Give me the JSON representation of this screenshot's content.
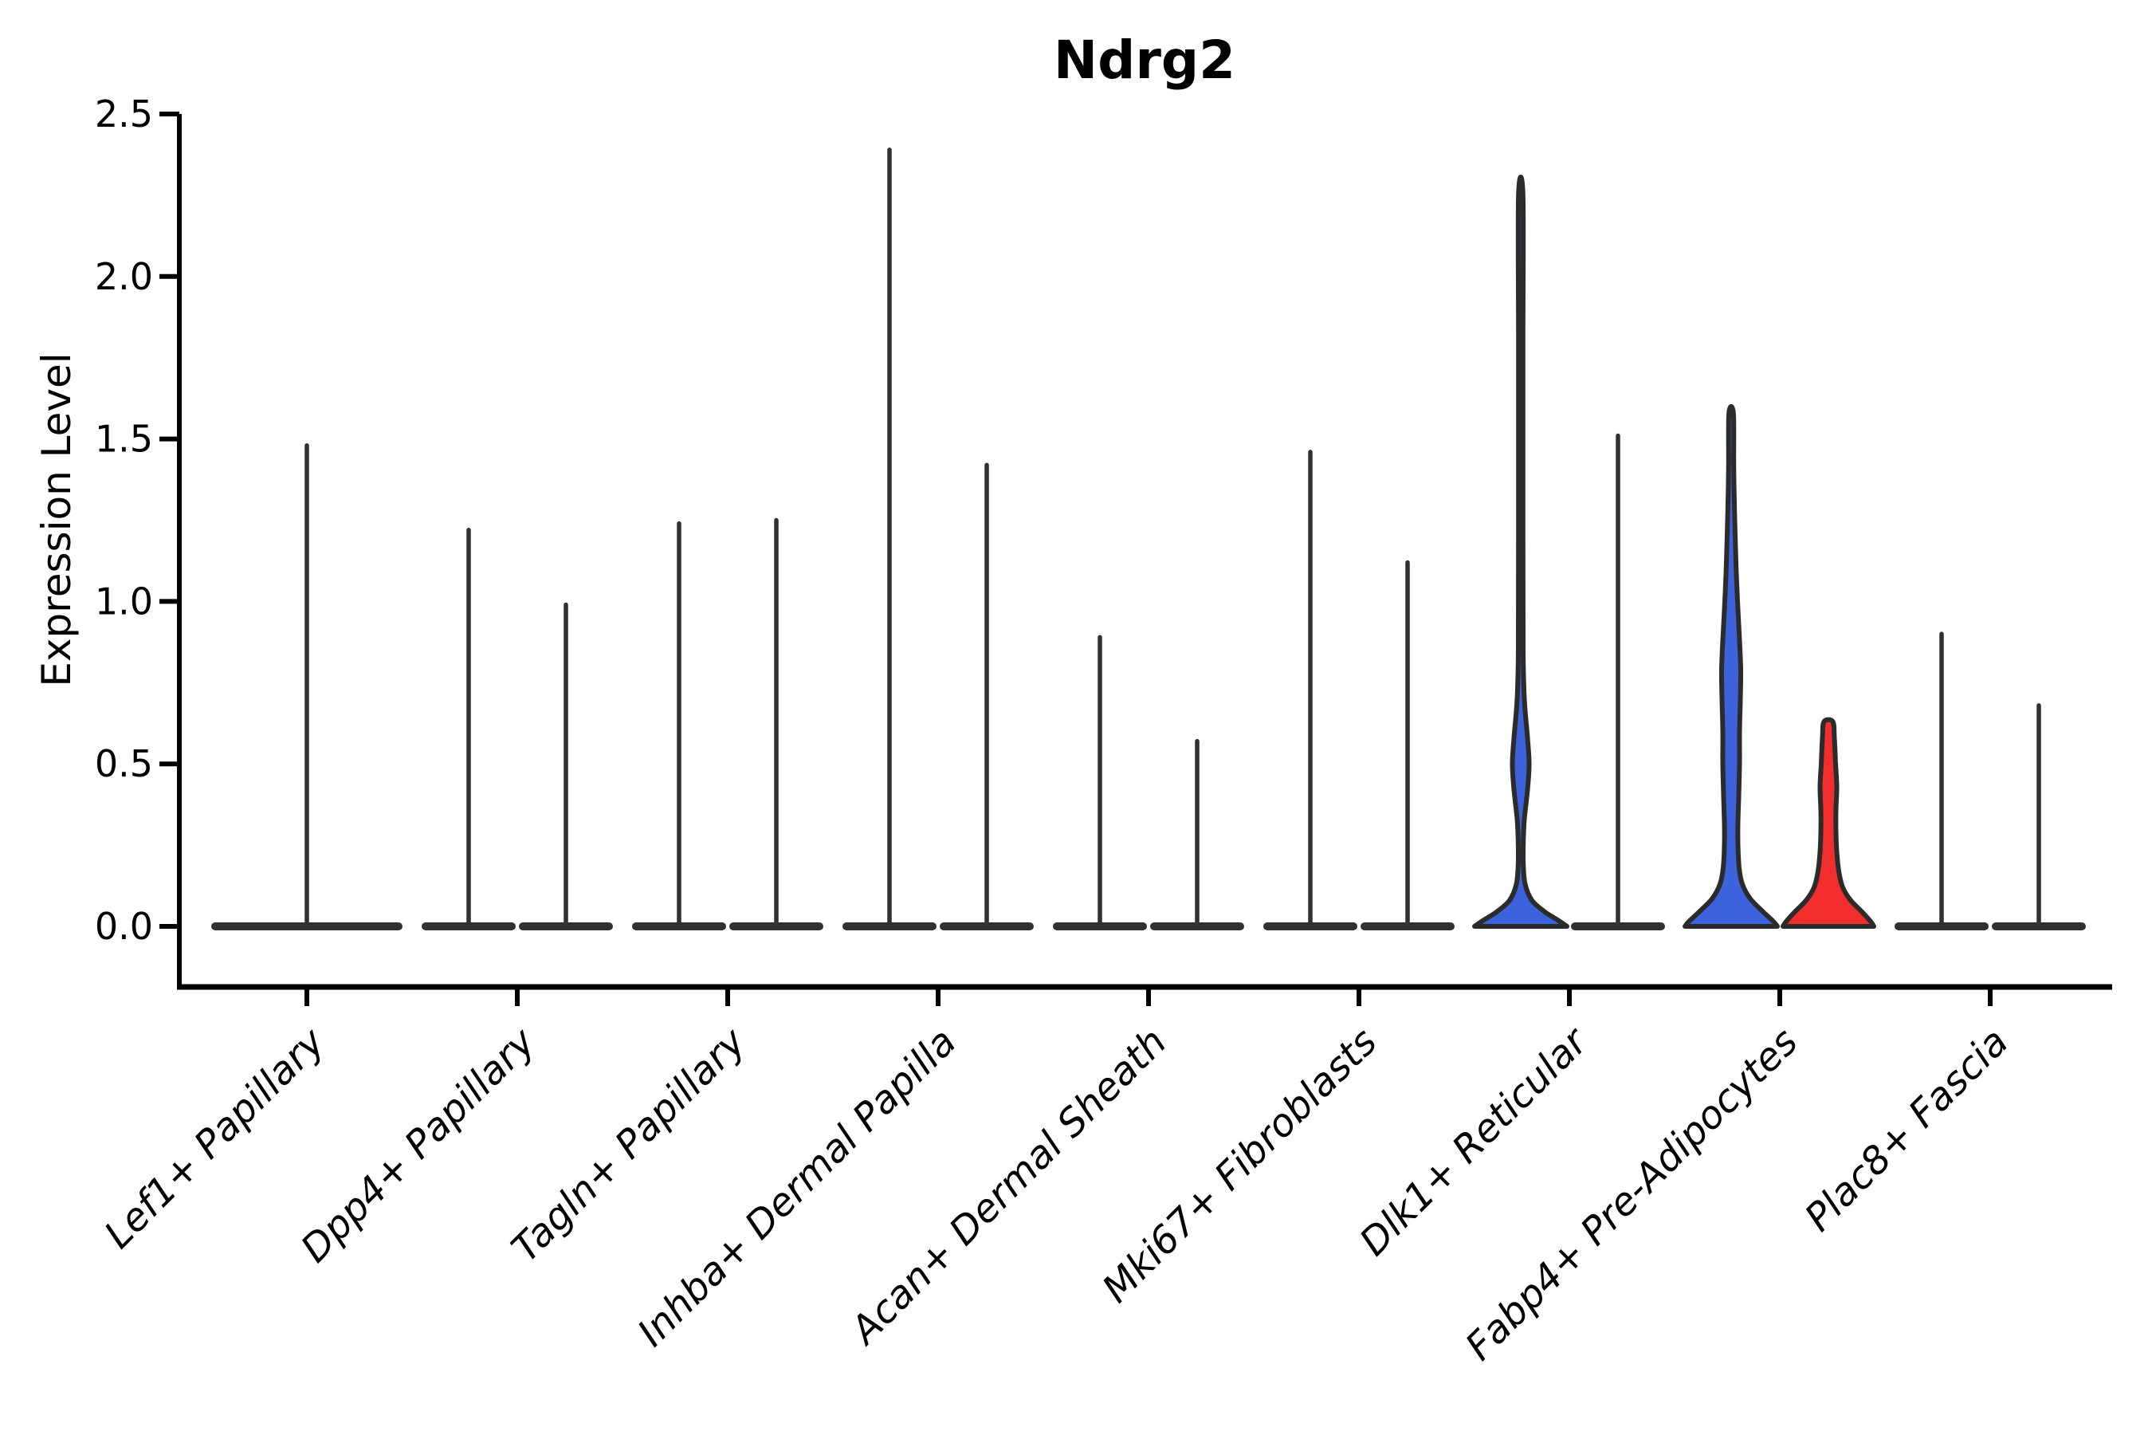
{
  "figure": {
    "title": "Ndrg2",
    "background_color": "#ffffff"
  },
  "chart_data": {
    "type": "violin",
    "title": "Ndrg2",
    "ylabel": "Expression Level",
    "xlabel": "",
    "grid": false,
    "legend_position": "none",
    "x_tick_rotation_deg": 45,
    "x_tick_style": "italic",
    "ylim": [
      -0.19,
      2.5
    ],
    "yticks": [
      "0.0",
      "0.5",
      "1.0",
      "1.5",
      "2.0",
      "2.5"
    ],
    "categories": [
      "Lef1+ Papillary",
      "Dpp4+ Papillary",
      "Tagln+ Papillary",
      "Inhba+ Dermal Papilla",
      "Acan+ Dermal Sheath",
      "Mki67+ Fibroblasts",
      "Dlk1+ Reticular",
      "Fabp4+ Pre-Adipocytes",
      "Plac8+ Fascia"
    ],
    "colors": {
      "left_group_fill": "#3D63DC",
      "right_group_fill": "#F12D2D",
      "outline": "#2B2B2B",
      "collapsed_stick": "#303030",
      "axis": "#000000"
    },
    "violins": [
      {
        "category_index": 0,
        "slot": "center",
        "max_expression": 1.48,
        "style": "collapsed",
        "fill": null
      },
      {
        "category_index": 1,
        "slot": "left",
        "max_expression": 1.22,
        "style": "collapsed",
        "fill": null
      },
      {
        "category_index": 1,
        "slot": "right",
        "max_expression": 0.99,
        "style": "collapsed",
        "fill": null
      },
      {
        "category_index": 2,
        "slot": "left",
        "max_expression": 1.24,
        "style": "collapsed",
        "fill": null
      },
      {
        "category_index": 2,
        "slot": "right",
        "max_expression": 1.25,
        "style": "collapsed",
        "fill": null
      },
      {
        "category_index": 3,
        "slot": "left",
        "max_expression": 2.39,
        "style": "collapsed",
        "fill": null
      },
      {
        "category_index": 3,
        "slot": "right",
        "max_expression": 1.42,
        "style": "collapsed",
        "fill": null
      },
      {
        "category_index": 4,
        "slot": "left",
        "max_expression": 0.89,
        "style": "collapsed",
        "fill": null
      },
      {
        "category_index": 4,
        "slot": "right",
        "max_expression": 0.57,
        "style": "collapsed",
        "fill": null
      },
      {
        "category_index": 5,
        "slot": "left",
        "max_expression": 1.46,
        "style": "collapsed",
        "fill": null
      },
      {
        "category_index": 5,
        "slot": "right",
        "max_expression": 1.12,
        "style": "collapsed",
        "fill": null
      },
      {
        "category_index": 6,
        "slot": "left",
        "max_expression": 2.25,
        "style": "shaped",
        "fill": "#3D63DC",
        "profile": [
          [
            2.25,
            2.8
          ],
          [
            1.8,
            2.8
          ],
          [
            1.2,
            2.8
          ],
          [
            0.85,
            3.0
          ],
          [
            0.7,
            4.5
          ],
          [
            0.58,
            8.5
          ],
          [
            0.5,
            10.5
          ],
          [
            0.42,
            8.5
          ],
          [
            0.33,
            4.5
          ],
          [
            0.26,
            3.2
          ],
          [
            0.19,
            3.2
          ],
          [
            0.13,
            5.5
          ],
          [
            0.08,
            14
          ],
          [
            0.045,
            30
          ],
          [
            0.02,
            46
          ],
          [
            0,
            58
          ]
        ]
      },
      {
        "category_index": 6,
        "slot": "right",
        "max_expression": 1.51,
        "style": "collapsed",
        "fill": null
      },
      {
        "category_index": 7,
        "slot": "left",
        "max_expression": 1.58,
        "style": "shaped",
        "fill": "#3D63DC",
        "profile": [
          [
            1.58,
            2.8
          ],
          [
            1.42,
            3.2
          ],
          [
            1.28,
            4.2
          ],
          [
            1.12,
            6
          ],
          [
            1.0,
            8
          ],
          [
            0.88,
            10.5
          ],
          [
            0.79,
            12
          ],
          [
            0.7,
            11.5
          ],
          [
            0.6,
            10.5
          ],
          [
            0.5,
            10.5
          ],
          [
            0.4,
            9.5
          ],
          [
            0.32,
            8.5
          ],
          [
            0.25,
            8.5
          ],
          [
            0.18,
            10
          ],
          [
            0.13,
            14
          ],
          [
            0.085,
            24
          ],
          [
            0.045,
            40
          ],
          [
            0.015,
            53
          ],
          [
            0,
            58
          ]
        ]
      },
      {
        "category_index": 7,
        "slot": "right",
        "max_expression": 0.63,
        "style": "shaped",
        "fill": "#F12D2D",
        "profile": [
          [
            0.63,
            5.5
          ],
          [
            0.58,
            7.5
          ],
          [
            0.5,
            9
          ],
          [
            0.43,
            10.5
          ],
          [
            0.36,
            9.5
          ],
          [
            0.29,
            9.5
          ],
          [
            0.23,
            10.5
          ],
          [
            0.17,
            13
          ],
          [
            0.12,
            18
          ],
          [
            0.08,
            28
          ],
          [
            0.045,
            42
          ],
          [
            0.015,
            53
          ],
          [
            0,
            57
          ]
        ]
      },
      {
        "category_index": 8,
        "slot": "left",
        "max_expression": 0.9,
        "style": "collapsed",
        "fill": null
      },
      {
        "category_index": 8,
        "slot": "right",
        "max_expression": 0.68,
        "style": "collapsed",
        "fill": null
      }
    ]
  }
}
